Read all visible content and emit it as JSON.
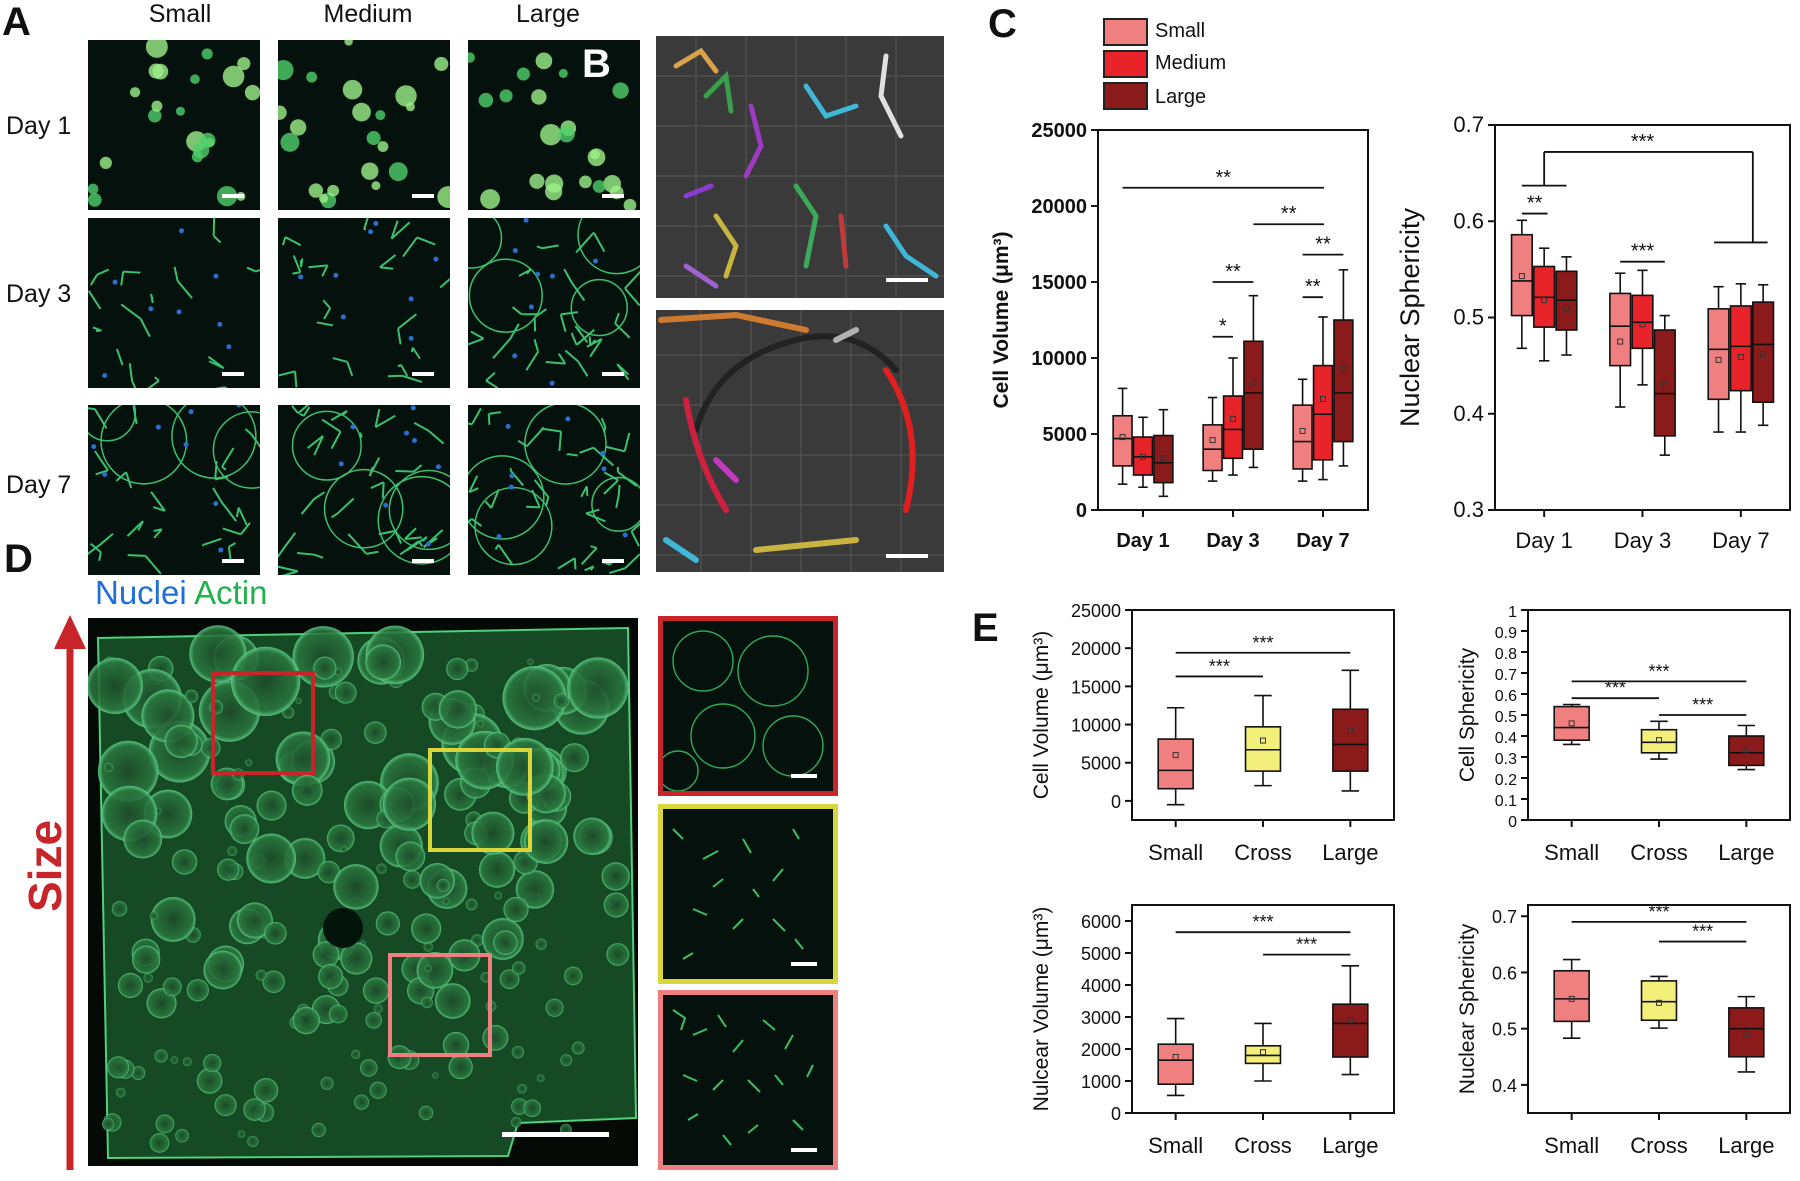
{
  "panel_labels": {
    "a": "A",
    "b": "B",
    "c": "C",
    "d": "D",
    "e": "E"
  },
  "panel_a": {
    "columns": [
      "Small",
      "Medium",
      "Large"
    ],
    "rows": [
      "Day 1",
      "Day 3",
      "Day 7"
    ]
  },
  "stain_legend": {
    "nuclei": "Nuclei",
    "actin": "Actin"
  },
  "panel_d": {
    "arrow_label": "Size"
  },
  "colors": {
    "small": "#f08080",
    "medium": "#e8242a",
    "large": "#8b1a1a",
    "cross": "#f2ef7a",
    "nuclei": "#1e6fd9",
    "actin": "#22b14c",
    "inset_red": "#c8252a",
    "inset_yellow": "#d8d63a",
    "inset_pink": "#f08080"
  },
  "legend": [
    "Small",
    "Medium",
    "Large"
  ],
  "chart_data": [
    {
      "id": "c1",
      "type": "box",
      "ylabel": "Cell Volume (μm³)",
      "categories": [
        "Day 1",
        "Day 3",
        "Day 7"
      ],
      "series_names": [
        "Small",
        "Medium",
        "Large"
      ],
      "ylim": [
        0,
        25000
      ],
      "yticks": [
        "0",
        "5000",
        "10000",
        "15000",
        "20000",
        "25000"
      ],
      "boxes": [
        [
          [
            1700,
            2900,
            4700,
            6200,
            8000,
            4800
          ],
          [
            1500,
            2300,
            3500,
            4800,
            6100,
            3500
          ],
          [
            900,
            1800,
            3100,
            4900,
            6600,
            3400
          ]
        ],
        [
          [
            1900,
            2600,
            4000,
            5600,
            7400,
            4600
          ],
          [
            2300,
            3400,
            5300,
            7500,
            10000,
            6000
          ],
          [
            2800,
            4000,
            7700,
            11100,
            14100,
            8400
          ]
        ],
        [
          [
            1900,
            2700,
            4500,
            6900,
            8600,
            5200
          ],
          [
            2000,
            3300,
            6300,
            9500,
            12700,
            7300
          ],
          [
            2900,
            4500,
            7700,
            12500,
            15800,
            9300
          ]
        ]
      ],
      "sig": [
        {
          "text": "**"
        },
        {
          "text": "**"
        },
        {
          "text": "**"
        },
        {
          "text": "*"
        },
        {
          "text": "**"
        },
        {
          "text": "**"
        }
      ]
    },
    {
      "id": "c2",
      "type": "box",
      "ylabel": "Nuclear Sphericity",
      "categories": [
        "Day 1",
        "Day 3",
        "Day 7"
      ],
      "series_names": [
        "Small",
        "Medium",
        "Large"
      ],
      "ylim": [
        0.3,
        0.7
      ],
      "yticks": [
        "0.3",
        "0.4",
        "0.5",
        "0.6",
        "0.7"
      ],
      "boxes": [
        [
          [
            0.468,
            0.502,
            0.538,
            0.586,
            0.601,
            0.543
          ],
          [
            0.455,
            0.49,
            0.521,
            0.553,
            0.572,
            0.518
          ],
          [
            0.461,
            0.487,
            0.518,
            0.548,
            0.563,
            0.51
          ]
        ],
        [
          [
            0.407,
            0.45,
            0.491,
            0.525,
            0.546,
            0.475
          ],
          [
            0.43,
            0.468,
            0.495,
            0.523,
            0.549,
            0.493
          ],
          [
            0.357,
            0.377,
            0.421,
            0.487,
            0.502,
            0.43
          ]
        ],
        [
          [
            0.381,
            0.415,
            0.467,
            0.509,
            0.532,
            0.456
          ],
          [
            0.381,
            0.424,
            0.47,
            0.512,
            0.535,
            0.459
          ],
          [
            0.388,
            0.412,
            0.472,
            0.516,
            0.534,
            0.462
          ]
        ]
      ],
      "sig": [
        {
          "text": "***"
        },
        {
          "text": "**"
        },
        {
          "text": "***"
        }
      ]
    },
    {
      "id": "e1",
      "type": "box",
      "ylabel": "Cell Volume (μm³)",
      "categories": [
        "Small",
        "Cross",
        "Large"
      ],
      "ylim": [
        -2500,
        25000
      ],
      "yticks": [
        "0",
        "5000",
        "10000",
        "15000",
        "20000",
        "25000"
      ],
      "boxes": [
        [
          -500,
          1600,
          4000,
          8100,
          12200,
          6000
        ],
        [
          2000,
          3900,
          6700,
          9700,
          13800,
          7900
        ],
        [
          1300,
          3900,
          7400,
          12000,
          17100,
          9200
        ]
      ],
      "sig": [
        {
          "text": "***"
        },
        {
          "text": "***"
        }
      ]
    },
    {
      "id": "e2",
      "type": "box",
      "ylabel": "Cell Sphericity",
      "categories": [
        "Small",
        "Cross",
        "Large"
      ],
      "ylim": [
        0,
        1
      ],
      "yticks": [
        "0",
        "0.1",
        "0.2",
        "0.3",
        "0.4",
        "0.5",
        "0.6",
        "0.7",
        "0.8",
        "0.9",
        "1"
      ],
      "boxes": [
        [
          0.36,
          0.38,
          0.44,
          0.54,
          0.55,
          0.46
        ],
        [
          0.29,
          0.32,
          0.37,
          0.43,
          0.47,
          0.38
        ],
        [
          0.24,
          0.26,
          0.32,
          0.4,
          0.45,
          0.33
        ]
      ],
      "sig": [
        {
          "text": "***"
        },
        {
          "text": "***"
        },
        {
          "text": "***"
        }
      ]
    },
    {
      "id": "e3",
      "type": "box",
      "ylabel": "Nulcear Volume (μm³)",
      "categories": [
        "Small",
        "Cross",
        "Large"
      ],
      "ylim": [
        0,
        6500
      ],
      "yticks": [
        "0",
        "1000",
        "2000",
        "3000",
        "4000",
        "5000",
        "6000"
      ],
      "boxes": [
        [
          550,
          900,
          1650,
          2150,
          2950,
          1750
        ],
        [
          1000,
          1550,
          1800,
          2100,
          2800,
          1900
        ],
        [
          1200,
          1750,
          2800,
          3400,
          4600,
          2900
        ]
      ],
      "sig": [
        {
          "text": "***"
        },
        {
          "text": "***"
        }
      ]
    },
    {
      "id": "e4",
      "type": "box",
      "ylabel": "Nuclear Sphericity",
      "categories": [
        "Small",
        "Cross",
        "Large"
      ],
      "ylim": [
        0.35,
        0.72
      ],
      "yticks": [
        "0.4",
        "0.5",
        "0.6",
        "0.7"
      ],
      "boxes": [
        [
          0.483,
          0.513,
          0.553,
          0.603,
          0.623,
          0.553
        ],
        [
          0.501,
          0.515,
          0.548,
          0.585,
          0.593,
          0.546
        ],
        [
          0.423,
          0.45,
          0.5,
          0.537,
          0.557,
          0.49
        ]
      ],
      "sig": [
        {
          "text": "***"
        },
        {
          "text": "***"
        }
      ]
    }
  ]
}
